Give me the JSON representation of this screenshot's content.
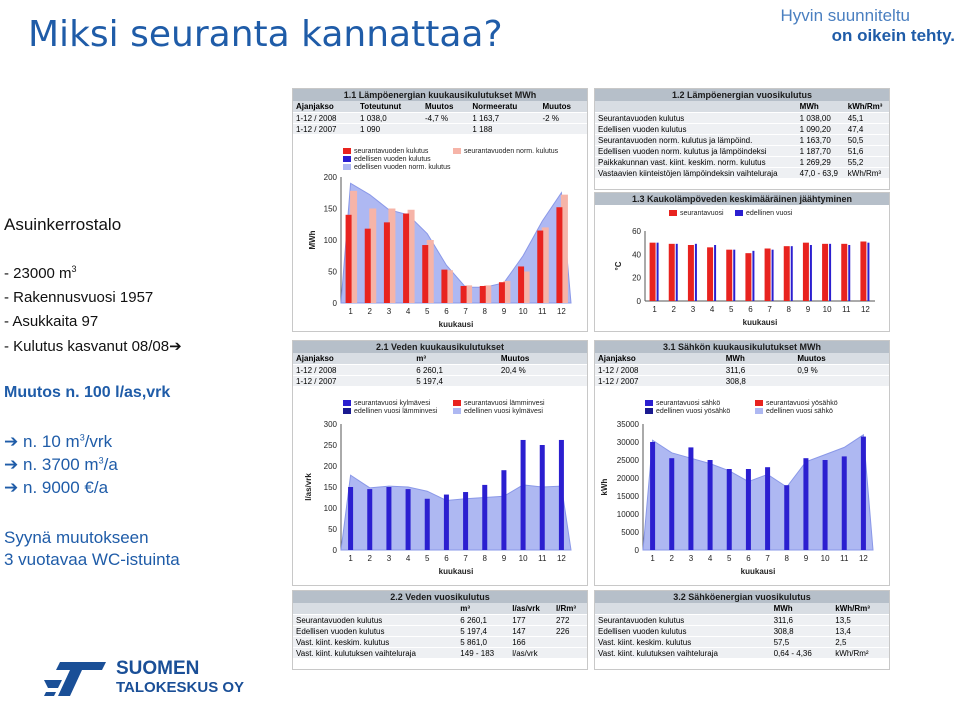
{
  "title": "Miksi seuranta kannattaa?",
  "brand": {
    "line1": "Hyvin suunniteltu",
    "line2": "on oikein tehty."
  },
  "logo": {
    "line1": "SUOMEN",
    "line2": "TALOKESKUS OY"
  },
  "left": {
    "heading": "Asuinkerrostalo",
    "bullets": [
      "- 23000 m",
      "- Rakennusvuosi 1957",
      "- Asukkaita 97",
      "- Kulutus kasvanut 08/08"
    ],
    "bullet_sup": "3",
    "arrow_glyph": "➔",
    "muutos": "Muutos n. 100 l/as,vrk",
    "results": [
      "n. 10 m",
      "/vrk",
      "n. 3700 m",
      "/a",
      "n. 9000 €/a"
    ],
    "results_sup": "3",
    "cause1": "Syynä muutokseen",
    "cause2": "3 vuotavaa WC-istuinta"
  },
  "p11": {
    "title": "1.1 Lämpöenergian kuukausikulutukset MWh",
    "headers": [
      "Ajanjakso",
      "Toteutunut",
      "Muutos",
      "Normeeratu",
      "Muutos"
    ],
    "rows": [
      [
        "1-12 / 2008",
        "1 038,0",
        "-4,7 %",
        "1 163,7",
        "-2 %"
      ],
      [
        "1-12 / 2007",
        "1 090",
        "",
        "1 188",
        ""
      ]
    ],
    "legend": [
      "seurantavuoden kulutus",
      "seurantavuoden norm. kulutus",
      "edellisen vuoden kulutus",
      "edellisen vuoden norm. kulutus"
    ],
    "ylabel": "MWh",
    "xlabel": "kuukausi"
  },
  "p12": {
    "title": "1.2 Lämpöenergian vuosikulutus",
    "headers": [
      "",
      "MWh",
      "kWh/Rm³"
    ],
    "rows": [
      [
        "Seurantavuoden kulutus",
        "1 038,00",
        "45,1"
      ],
      [
        "Edellisen vuoden kulutus",
        "1 090,20",
        "47,4"
      ],
      [
        "Seurantavuoden norm. kulutus ja lämpöind.",
        "1 163,70",
        "50,5"
      ],
      [
        "Edellisen vuoden norm. kulutus ja lämpöindeksi",
        "1 187,70",
        "51,6"
      ],
      [
        "Paikkakunnan vast. kiint. keskim. norm. kulutus",
        "1 269,29",
        "55,2"
      ],
      [
        "Vastaavien kiinteistöjen lämpöindeksin vaihteluraja",
        "47,0 - 63,9",
        "kWh/Rm³"
      ]
    ]
  },
  "p13": {
    "title": "1.3 Kaukolämpöveden keskimääräinen jäähtyminen",
    "legend": [
      "seurantavuosi",
      "edellinen vuosi"
    ],
    "ylabel": "°C",
    "xlabel": "kuukausi"
  },
  "p21": {
    "title": "2.1 Veden kuukausikulutukset",
    "headers": [
      "Ajanjakso",
      "m³",
      "Muutos"
    ],
    "rows": [
      [
        "1-12 / 2008",
        "6 260,1",
        "20,4 %"
      ],
      [
        "1-12 / 2007",
        "5 197,4",
        ""
      ]
    ],
    "legend": [
      "seurantavuosi kylmävesi",
      "seurantavuosi lämminvesi",
      "edellinen vuosi lämminvesi",
      "edellinen vuosi kylmävesi"
    ],
    "ylabel": "l/as/vrk",
    "xlabel": "kuukausi"
  },
  "p31": {
    "title": "3.1 Sähkön kuukausikulutukset MWh",
    "headers": [
      "Ajanjakso",
      "MWh",
      "Muutos"
    ],
    "rows": [
      [
        "1-12 / 2008",
        "311,6",
        "0,9 %"
      ],
      [
        "1-12 / 2007",
        "308,8",
        ""
      ]
    ],
    "legend": [
      "seurantavuosi sähkö",
      "seurantavuosi yösähkö",
      "edellinen vuosi yösähkö",
      "edellinen vuosi sähkö"
    ],
    "ylabel": "kWh",
    "xlabel": "kuukausi"
  },
  "p22": {
    "title": "2.2 Veden vuosikulutus",
    "headers": [
      "",
      "m³",
      "l/as/vrk",
      "l/Rm³"
    ],
    "rows": [
      [
        "Seurantavuoden kulutus",
        "6 260,1",
        "177",
        "272"
      ],
      [
        "Edellisen vuoden kulutus",
        "5 197,4",
        "147",
        "226"
      ],
      [
        "Vast. kiint. keskim. kulutus",
        "5 861,0",
        "166",
        ""
      ],
      [
        "Vast. kiint. kulutuksen vaihteluraja",
        "149 - 183",
        "l/as/vrk",
        ""
      ]
    ]
  },
  "p32": {
    "title": "3.2 Sähköenergian vuosikulutus",
    "headers": [
      "",
      "MWh",
      "kWh/Rm³"
    ],
    "rows": [
      [
        "Seurantavuoden kulutus",
        "311,6",
        "13,5"
      ],
      [
        "Edellisen vuoden kulutus",
        "308,8",
        "13,4"
      ],
      [
        "Vast. kiint. keskim. kulutus",
        "57,5",
        "2,5"
      ],
      [
        "Vast. kiint. kulutuksen vaihteluraja",
        "0,64 - 4,36",
        "kWh/Rm²"
      ]
    ]
  },
  "colors": {
    "red": "#e8231f",
    "blue": "#2b1fd0",
    "pink": "#f6b4a8",
    "periwinkle": "#aeb8f2",
    "navy": "#1a1a90",
    "grey_header": "#b6bfc9",
    "title_blue": "#1f5ca8"
  },
  "chart_data": [
    {
      "type": "bar",
      "title": "1.1 Lämpöenergian kuukausikulutukset MWh",
      "categories": [
        "1",
        "2",
        "3",
        "4",
        "5",
        "6",
        "7",
        "8",
        "9",
        "10",
        "11",
        "12"
      ],
      "ylabel": "MWh",
      "xlabel": "kuukausi",
      "ylim": [
        0,
        200
      ],
      "yticks": [
        0,
        50,
        100,
        150,
        200
      ],
      "series": [
        {
          "name": "seurantavuoden kulutus",
          "values": [
            140,
            118,
            128,
            142,
            92,
            53,
            27,
            27,
            33,
            58,
            115,
            152
          ]
        },
        {
          "name": "seurantavuoden norm. kulutus",
          "values": [
            178,
            150,
            150,
            148,
            100,
            52,
            28,
            28,
            35,
            50,
            120,
            172
          ]
        },
        {
          "name": "edellisen vuoden kulutus",
          "values": [
            160,
            138,
            140,
            150,
            95,
            55,
            28,
            28,
            35,
            50,
            120,
            160
          ]
        },
        {
          "name": "edellisen vuoden norm. kulutus",
          "values": [
            190,
            172,
            148,
            140,
            110,
            60,
            25,
            25,
            32,
            75,
            130,
            175
          ]
        }
      ]
    },
    {
      "type": "bar",
      "title": "1.3 Kaukolämpöveden keskimääräinen jäähtyminen",
      "categories": [
        "1",
        "2",
        "3",
        "4",
        "5",
        "6",
        "7",
        "8",
        "9",
        "10",
        "11",
        "12"
      ],
      "ylabel": "°C",
      "xlabel": "kuukausi",
      "ylim": [
        0,
        60
      ],
      "yticks": [
        0,
        20,
        40,
        60
      ],
      "series": [
        {
          "name": "seurantavuosi",
          "values": [
            50,
            49,
            48,
            46,
            44,
            41,
            45,
            47,
            50,
            49,
            49,
            51
          ]
        },
        {
          "name": "edellinen vuosi",
          "values": [
            50,
            49,
            49,
            48,
            44,
            43,
            44,
            47,
            48,
            49,
            48,
            50
          ]
        }
      ]
    },
    {
      "type": "bar",
      "title": "2.1 Veden kuukausikulutukset",
      "categories": [
        "1",
        "2",
        "3",
        "4",
        "5",
        "6",
        "7",
        "8",
        "9",
        "10",
        "11",
        "12"
      ],
      "ylabel": "l/as/vrk",
      "xlabel": "kuukausi",
      "ylim": [
        0,
        300
      ],
      "yticks": [
        0,
        50,
        100,
        150,
        200,
        250,
        300
      ],
      "series": [
        {
          "name": "seurantavuosi kylmävesi",
          "values": [
            150,
            145,
            150,
            145,
            122,
            132,
            138,
            155,
            190,
            262,
            250,
            262
          ]
        },
        {
          "name": "edellinen vuosi kylmävesi",
          "values": [
            178,
            148,
            152,
            150,
            140,
            118,
            122,
            125,
            128,
            155,
            150,
            152
          ]
        }
      ]
    },
    {
      "type": "bar",
      "title": "3.1 Sähkön kuukausikulutukset MWh",
      "categories": [
        "1",
        "2",
        "3",
        "4",
        "5",
        "6",
        "7",
        "8",
        "9",
        "10",
        "11",
        "12"
      ],
      "ylabel": "kWh",
      "xlabel": "kuukausi",
      "ylim": [
        0,
        35000
      ],
      "yticks": [
        0,
        5000,
        10000,
        15000,
        20000,
        25000,
        30000,
        35000
      ],
      "series": [
        {
          "name": "seurantavuosi sähkö",
          "values": [
            30000,
            25500,
            28500,
            25000,
            22500,
            22500,
            23000,
            18000,
            25500,
            25000,
            26000,
            31500
          ]
        },
        {
          "name": "edellinen vuosi sähkö",
          "values": [
            30500,
            27000,
            25500,
            24000,
            22000,
            19000,
            21000,
            17500,
            24500,
            26500,
            28500,
            32000
          ]
        }
      ]
    }
  ]
}
